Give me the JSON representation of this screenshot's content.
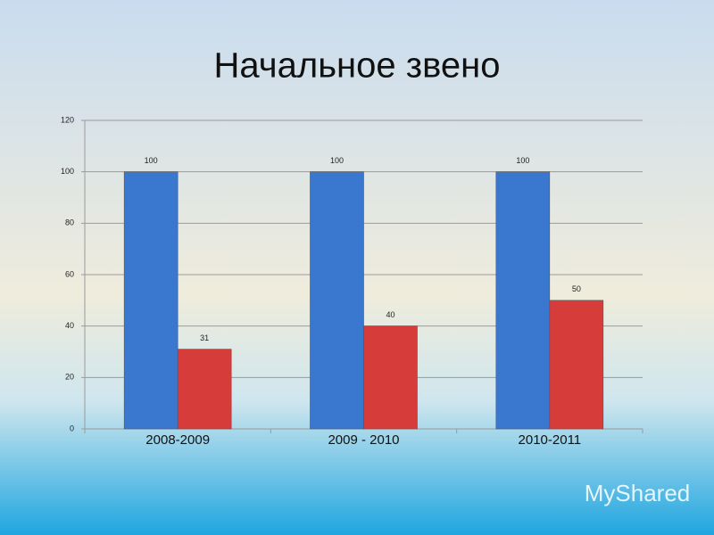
{
  "chart_data": {
    "type": "bar",
    "title": "Начальное звено",
    "categories": [
      "2008-2009",
      "2009 - 2010",
      "2010-2011"
    ],
    "series": [
      {
        "color": "#3a78d0",
        "values": [
          100,
          100,
          100
        ]
      },
      {
        "color": "#d63c3a",
        "values": [
          31,
          40,
          50
        ]
      }
    ],
    "ylim": [
      0,
      120
    ],
    "yticks": [
      0,
      20,
      40,
      60,
      80,
      100,
      120
    ],
    "grid": true,
    "data_labels": true
  },
  "watermark": "MyShared"
}
